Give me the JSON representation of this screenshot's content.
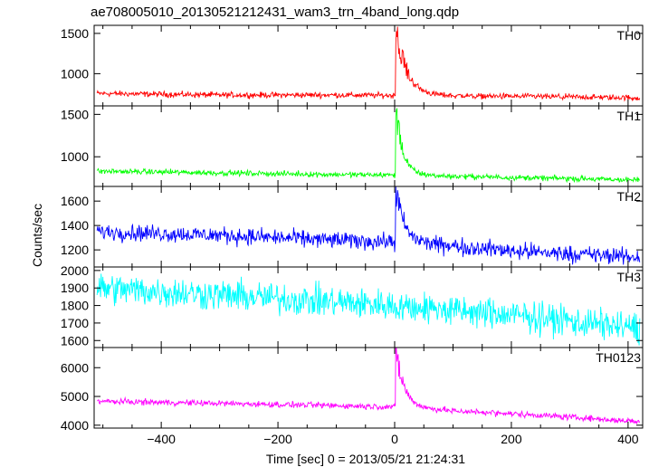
{
  "chart_data": {
    "type": "line",
    "title": "ae708005010_20130521212431_wam3_trn_4band_long.qdp",
    "xlabel": "Time [sec] 0 = 2013/05/21 21:24:31",
    "ylabel": "Counts/sec",
    "xlim": [
      -515,
      425
    ],
    "x_ticks": [
      -400,
      -200,
      0,
      200,
      400
    ],
    "x_tick_labels": [
      "−400",
      "−200",
      "0",
      "200",
      "400"
    ],
    "panels": [
      {
        "name": "TH0",
        "color": "#ff0000",
        "ylim": [
          600,
          1600
        ],
        "y_ticks": [
          1000,
          1500
        ],
        "baseline": [
          [
            -510,
            755
          ],
          [
            -300,
            735
          ],
          [
            -100,
            735
          ],
          [
            0,
            730
          ],
          [
            100,
            725
          ],
          [
            250,
            715
          ],
          [
            420,
            700
          ]
        ],
        "noise": 22,
        "peak": 1600,
        "peak_x": 2,
        "decay_s": 18
      },
      {
        "name": "TH1",
        "color": "#00ff00",
        "ylim": [
          650,
          1600
        ],
        "y_ticks": [
          1000,
          1500
        ],
        "baseline": [
          [
            -510,
            830
          ],
          [
            -300,
            810
          ],
          [
            -100,
            790
          ],
          [
            0,
            785
          ],
          [
            100,
            770
          ],
          [
            250,
            750
          ],
          [
            420,
            725
          ]
        ],
        "noise": 20,
        "peak": 1580,
        "peak_x": 2,
        "decay_s": 12
      },
      {
        "name": "TH2",
        "color": "#0000ff",
        "ylim": [
          1060,
          1720
        ],
        "y_ticks": [
          1200,
          1400,
          1600
        ],
        "baseline": [
          [
            -510,
            1350
          ],
          [
            -300,
            1320
          ],
          [
            -100,
            1280
          ],
          [
            0,
            1265
          ],
          [
            100,
            1230
          ],
          [
            250,
            1180
          ],
          [
            420,
            1140
          ]
        ],
        "noise": 42,
        "peak": 1700,
        "peak_x": 2,
        "decay_s": 14
      },
      {
        "name": "TH3",
        "color": "#00ffff",
        "ylim": [
          1560,
          2020
        ],
        "y_ticks": [
          1600,
          1700,
          1800,
          1900,
          2000
        ],
        "baseline": [
          [
            -510,
            1900
          ],
          [
            -300,
            1860
          ],
          [
            -100,
            1820
          ],
          [
            0,
            1800
          ],
          [
            100,
            1770
          ],
          [
            250,
            1730
          ],
          [
            420,
            1670
          ]
        ],
        "noise": 55,
        "peak": 1800,
        "peak_x": 2,
        "decay_s": 5
      },
      {
        "name": "TH0123",
        "color": "#ff00ff",
        "ylim": [
          3900,
          6700
        ],
        "y_ticks": [
          4000,
          5000,
          6000
        ],
        "baseline": [
          [
            -510,
            4830
          ],
          [
            -300,
            4760
          ],
          [
            -100,
            4680
          ],
          [
            0,
            4640
          ],
          [
            100,
            4500
          ],
          [
            250,
            4350
          ],
          [
            420,
            4120
          ]
        ],
        "noise": 65,
        "peak": 6650,
        "peak_x": 2,
        "decay_s": 14
      }
    ]
  }
}
